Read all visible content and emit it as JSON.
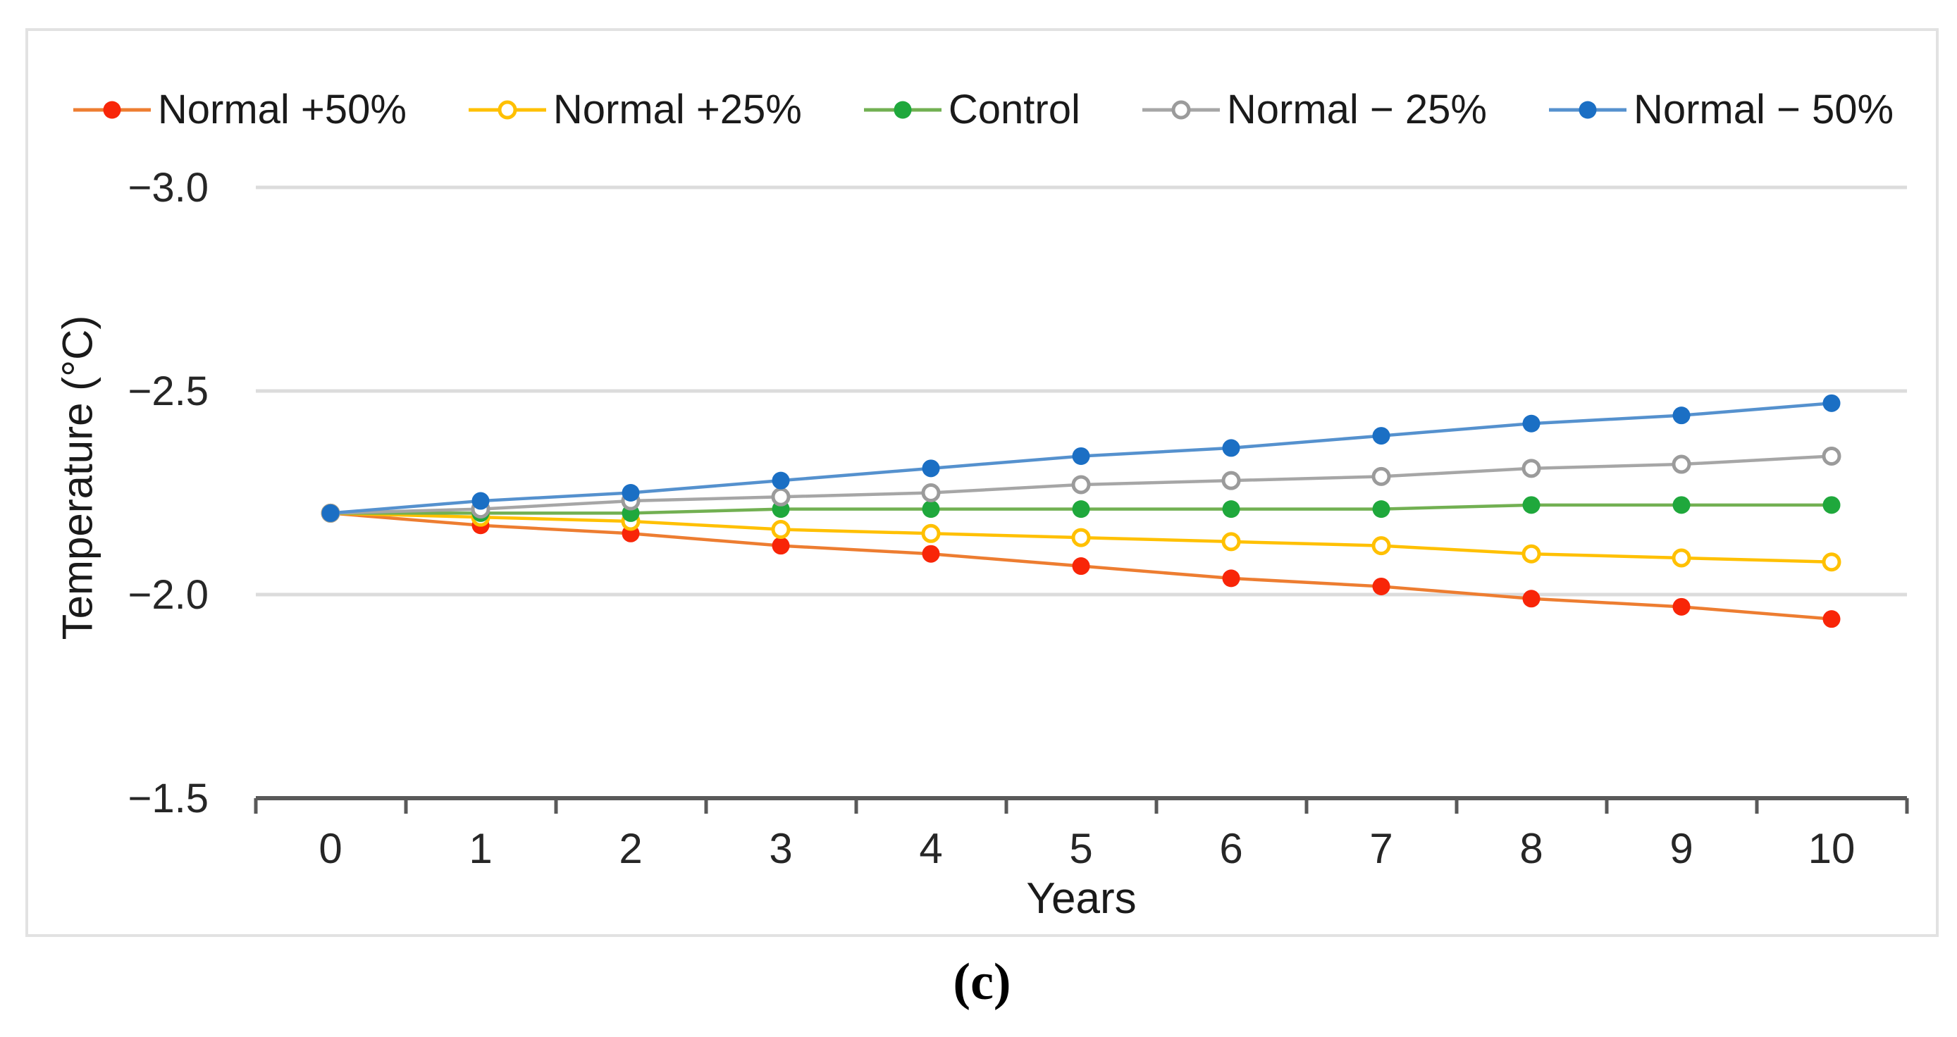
{
  "figure": {
    "caption": "(c)"
  },
  "chart_data": {
    "type": "line",
    "title": "",
    "xlabel": "Years",
    "ylabel": "Temperature (°C)",
    "legend_position": "top",
    "grid": "horizontal",
    "x": [
      0,
      1,
      2,
      3,
      4,
      5,
      6,
      7,
      8,
      9,
      10
    ],
    "x_tick_labels": [
      "0",
      "1",
      "2",
      "3",
      "4",
      "5",
      "6",
      "7",
      "8",
      "9",
      "10"
    ],
    "y_axis": {
      "min": -3.0,
      "max": -1.5,
      "reversed": true,
      "ticks": [
        {
          "value": -3.0,
          "label": "−3.0"
        },
        {
          "value": -2.5,
          "label": "−2.5"
        },
        {
          "value": -2.0,
          "label": "−2.0"
        },
        {
          "value": -1.5,
          "label": "−1.5"
        }
      ]
    },
    "axis_colors": {
      "gridline": "#dcdcdc",
      "axis_line": "#595959",
      "tick_label": "#262626"
    },
    "series": [
      {
        "name": "Normal +50%",
        "marker": "filled",
        "marker_color": "#f82508",
        "line_color": "#ed7d31",
        "values": [
          -2.2,
          -2.17,
          -2.15,
          -2.12,
          -2.1,
          -2.07,
          -2.04,
          -2.02,
          -1.99,
          -1.97,
          -1.94
        ]
      },
      {
        "name": "Normal +25%",
        "marker": "open",
        "marker_color": "#ffc000",
        "line_color": "#ffc000",
        "values": [
          -2.2,
          -2.19,
          -2.18,
          -2.16,
          -2.15,
          -2.14,
          -2.13,
          -2.12,
          -2.1,
          -2.09,
          -2.08
        ]
      },
      {
        "name": "Control",
        "marker": "filled",
        "marker_color": "#1fa83c",
        "line_color": "#72b052",
        "values": [
          -2.2,
          -2.2,
          -2.2,
          -2.21,
          -2.21,
          -2.21,
          -2.21,
          -2.21,
          -2.22,
          -2.22,
          -2.22
        ]
      },
      {
        "name": "Normal − 25%",
        "marker": "open",
        "marker_color": "#9b9b9b",
        "line_color": "#a6a6a6",
        "values": [
          -2.2,
          -2.21,
          -2.23,
          -2.24,
          -2.25,
          -2.27,
          -2.28,
          -2.29,
          -2.31,
          -2.32,
          -2.34
        ]
      },
      {
        "name": "Normal − 50%",
        "marker": "filled",
        "marker_color": "#1b6fc4",
        "line_color": "#5591ce",
        "values": [
          -2.2,
          -2.23,
          -2.25,
          -2.28,
          -2.31,
          -2.34,
          -2.36,
          -2.39,
          -2.42,
          -2.44,
          -2.47
        ]
      }
    ]
  }
}
